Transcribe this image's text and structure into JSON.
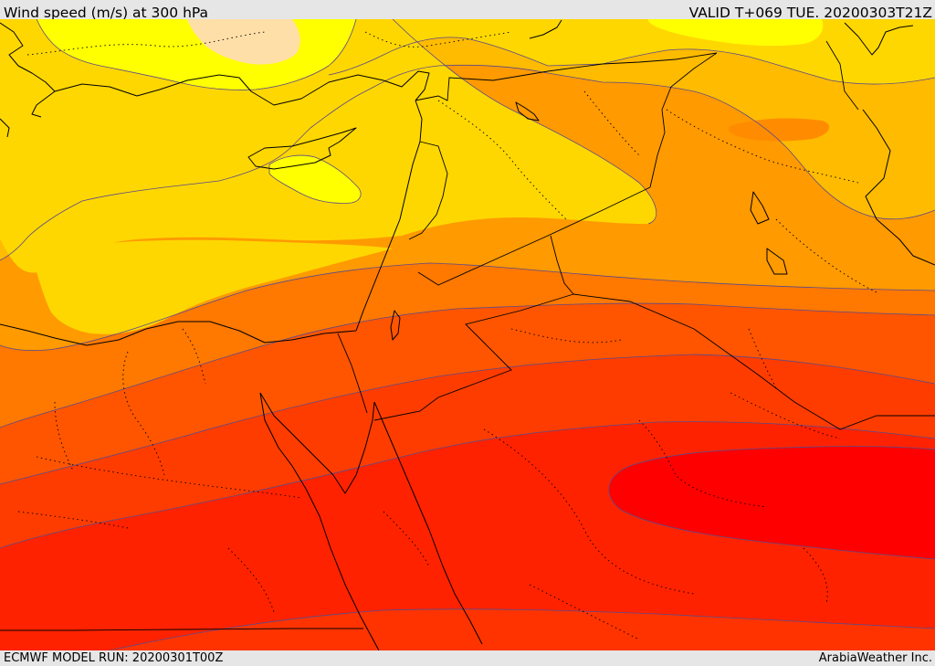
{
  "header": {
    "title": "Wind speed (m/s) at 300 hPa",
    "valid": "VALID T+069 TUE. 20200303T21Z"
  },
  "footer": {
    "run": "ECMWF MODEL RUN: 20200301T00Z",
    "credit": "ArabiaWeather Inc."
  },
  "map": {
    "variable": "wind-speed",
    "palette": [
      "#ffeaa8",
      "#ffff00",
      "#ffd700",
      "#ffbb00",
      "#ff9900",
      "#ff7b00",
      "#ff5500",
      "#ff3300",
      "#ff1b00",
      "#ff0000"
    ]
  }
}
